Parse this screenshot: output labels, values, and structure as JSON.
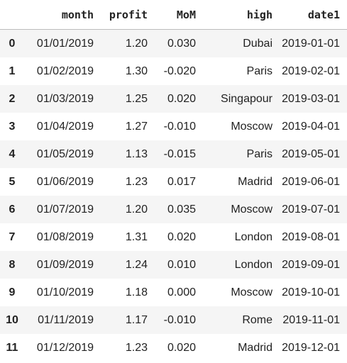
{
  "table": {
    "columns": [
      "",
      "month",
      "profit",
      "MoM",
      "high",
      "date1"
    ],
    "rows": [
      {
        "index": "0",
        "month": "01/01/2019",
        "profit": "1.20",
        "mom": "0.030",
        "high": "Dubai",
        "date1": "2019-01-01"
      },
      {
        "index": "1",
        "month": "01/02/2019",
        "profit": "1.30",
        "mom": "-0.020",
        "high": "Paris",
        "date1": "2019-02-01"
      },
      {
        "index": "2",
        "month": "01/03/2019",
        "profit": "1.25",
        "mom": "0.020",
        "high": "Singapour",
        "date1": "2019-03-01"
      },
      {
        "index": "3",
        "month": "01/04/2019",
        "profit": "1.27",
        "mom": "-0.010",
        "high": "Moscow",
        "date1": "2019-04-01"
      },
      {
        "index": "4",
        "month": "01/05/2019",
        "profit": "1.13",
        "mom": "-0.015",
        "high": "Paris",
        "date1": "2019-05-01"
      },
      {
        "index": "5",
        "month": "01/06/2019",
        "profit": "1.23",
        "mom": "0.017",
        "high": "Madrid",
        "date1": "2019-06-01"
      },
      {
        "index": "6",
        "month": "01/07/2019",
        "profit": "1.20",
        "mom": "0.035",
        "high": "Moscow",
        "date1": "2019-07-01"
      },
      {
        "index": "7",
        "month": "01/08/2019",
        "profit": "1.31",
        "mom": "0.020",
        "high": "London",
        "date1": "2019-08-01"
      },
      {
        "index": "8",
        "month": "01/09/2019",
        "profit": "1.24",
        "mom": "0.010",
        "high": "London",
        "date1": "2019-09-01"
      },
      {
        "index": "9",
        "month": "01/10/2019",
        "profit": "1.18",
        "mom": "0.000",
        "high": "Moscow",
        "date1": "2019-10-01"
      },
      {
        "index": "10",
        "month": "01/11/2019",
        "profit": "1.17",
        "mom": "-0.010",
        "high": "Rome",
        "date1": "2019-11-01"
      },
      {
        "index": "11",
        "month": "01/12/2019",
        "profit": "1.23",
        "mom": "0.020",
        "high": "Madrid",
        "date1": "2019-12-01"
      }
    ]
  }
}
